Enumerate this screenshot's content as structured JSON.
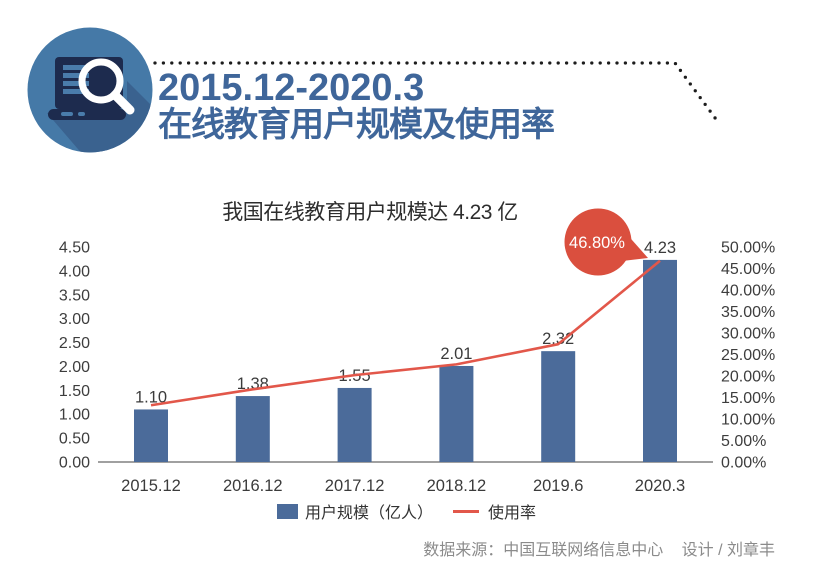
{
  "header": {
    "title_line1": "2015.12-2020.3",
    "title_line2": "在线教育用户规模及使用率",
    "title_color": "#3f669a",
    "icon": {
      "name": "laptop-search-icon",
      "circle_color": "#4579a7",
      "shadow_color": "#3a628f",
      "laptop_color": "#1d2b4e"
    }
  },
  "chart_data": {
    "type": "bar+line",
    "title": "我国在线教育用户规模达 4.23 亿",
    "categories": [
      "2015.12",
      "2016.12",
      "2017.12",
      "2018.12",
      "2019.6",
      "2020.3"
    ],
    "series": [
      {
        "name": "用户规模（亿人）",
        "kind": "bar",
        "axis": "left",
        "color": "#4b6b9a",
        "values": [
          1.1,
          1.38,
          1.55,
          2.01,
          2.32,
          4.23
        ],
        "labels": [
          "1.10",
          "1.38",
          "1.55",
          "2.01",
          "2.32",
          "4.23"
        ]
      },
      {
        "name": "使用率",
        "kind": "line",
        "axis": "right",
        "color": "#e2574a",
        "values_percent": [
          13.2,
          16.9,
          20.2,
          22.7,
          27.4,
          46.8
        ],
        "note": "only the last point is labeled on the chart"
      }
    ],
    "left_axis": {
      "min": 0,
      "max": 4.5,
      "step": 0.5,
      "tick_labels": [
        "4.50",
        "4.00",
        "3.50",
        "3.00",
        "2.50",
        "2.00",
        "1.50",
        "1.00",
        "0.50",
        "0.00"
      ]
    },
    "right_axis": {
      "min": 0,
      "max": 50,
      "step": 5,
      "tick_labels": [
        "50.00%",
        "45.00%",
        "40.00%",
        "35.00%",
        "30.00%",
        "25.00%",
        "20.00%",
        "15.00%",
        "10.00%",
        "5.00%",
        "0.00%"
      ]
    },
    "callout": {
      "text": "46.80%",
      "bg": "#da4f3e",
      "text_color": "#ffffff"
    },
    "legend": [
      {
        "label": "用户规模（亿人）",
        "swatch": "square",
        "color": "#4b6b9a"
      },
      {
        "label": "使用率",
        "swatch": "line",
        "color": "#e2574a"
      }
    ],
    "legend_position": "bottom",
    "grid": false,
    "xlabel": "",
    "ylabel": ""
  },
  "footer": {
    "source": "数据来源：中国互联网络信息中心",
    "designer": "设计 / 刘章丰"
  }
}
